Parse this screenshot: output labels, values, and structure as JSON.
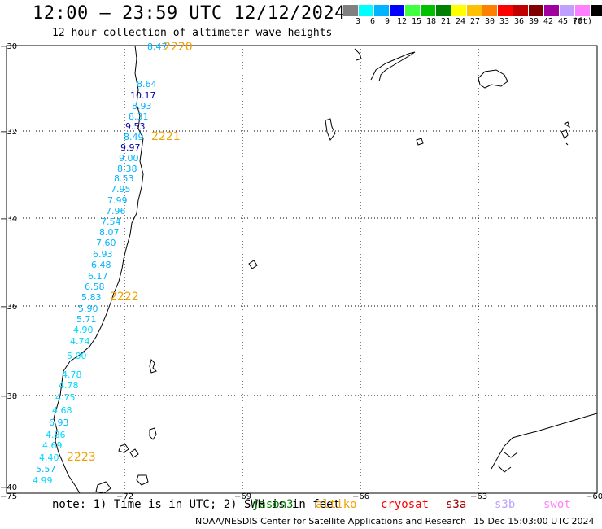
{
  "title": "12:00 – 23:59 UTC 12/12/2024",
  "subtitle": "12 hour collection of altimeter wave heights",
  "legend": {
    "colors": [
      "#808080",
      "#00ffff",
      "#00b4ff",
      "#0000ff",
      "#40ff40",
      "#00c000",
      "#008000",
      "#ffff00",
      "#ffc000",
      "#ff8000",
      "#ff0000",
      "#c00000",
      "#800000",
      "#a000a0",
      "#c0a0ff",
      "#ff80ff",
      "#000000"
    ],
    "ticks": [
      "3",
      "6",
      "9",
      "12",
      "15",
      "18",
      "21",
      "24",
      "27",
      "30",
      "33",
      "36",
      "39",
      "42",
      "45",
      "70",
      "(ft)"
    ]
  },
  "map": {
    "lon_ticks": [
      "−75",
      "−72",
      "−69",
      "−66",
      "−63",
      "−60"
    ],
    "lat_ticks": [
      "−30",
      "−32",
      "−34",
      "−36",
      "−38",
      "−40"
    ],
    "time_labels": [
      "2220",
      "2221",
      "2222",
      "2223"
    ],
    "time_color": "#f0a000",
    "wave_heights": [
      {
        "v": "8.47",
        "c": "#00b4ff"
      },
      {
        "v": "8.64",
        "c": "#00b4ff"
      },
      {
        "v": "10.17",
        "c": "#0000a0"
      },
      {
        "v": "8.93",
        "c": "#00b4ff"
      },
      {
        "v": "8.31",
        "c": "#00b4ff"
      },
      {
        "v": "9.53",
        "c": "#0000a0"
      },
      {
        "v": "8.49",
        "c": "#00b4ff"
      },
      {
        "v": "9.97",
        "c": "#0000a0"
      },
      {
        "v": "9.00",
        "c": "#00b4ff"
      },
      {
        "v": "8.38",
        "c": "#00b4ff"
      },
      {
        "v": "8.53",
        "c": "#00b4ff"
      },
      {
        "v": "7.95",
        "c": "#00b4ff"
      },
      {
        "v": "7.99",
        "c": "#00b4ff"
      },
      {
        "v": "7.96",
        "c": "#00b4ff"
      },
      {
        "v": "7.54",
        "c": "#00b4ff"
      },
      {
        "v": "8.07",
        "c": "#00b4ff"
      },
      {
        "v": "7.60",
        "c": "#00b4ff"
      },
      {
        "v": "6.93",
        "c": "#00b4ff"
      },
      {
        "v": "6.48",
        "c": "#00b4ff"
      },
      {
        "v": "6.17",
        "c": "#00b4ff"
      },
      {
        "v": "6.58",
        "c": "#00b4ff"
      },
      {
        "v": "5.83",
        "c": "#00b4ff"
      },
      {
        "v": "5.90",
        "c": "#00b4ff"
      },
      {
        "v": "5.71",
        "c": "#00b4ff"
      },
      {
        "v": "4.90",
        "c": "#00d8ff"
      },
      {
        "v": "4.74",
        "c": "#00d8ff"
      },
      {
        "v": "5.00",
        "c": "#00d8ff"
      },
      {
        "v": "4.78",
        "c": "#00d8ff"
      },
      {
        "v": "4.78",
        "c": "#00d8ff"
      },
      {
        "v": "4.75",
        "c": "#00d8ff"
      },
      {
        "v": "4.68",
        "c": "#00d8ff"
      },
      {
        "v": "6.93",
        "c": "#00b4ff"
      },
      {
        "v": "4.86",
        "c": "#00d8ff"
      },
      {
        "v": "4.69",
        "c": "#00d8ff"
      },
      {
        "v": "4.40",
        "c": "#00d8ff"
      },
      {
        "v": "5.57",
        "c": "#00b4ff"
      },
      {
        "v": "4.99",
        "c": "#00d8ff"
      }
    ]
  },
  "note": "note:  1) Time is in UTC; 2) SWH is in feet",
  "satellites": [
    {
      "name": "jason3",
      "color": "#008000"
    },
    {
      "name": "altiko",
      "color": "#f0a000"
    },
    {
      "name": "cryosat",
      "color": "#ff0000"
    },
    {
      "name": "s3a",
      "color": "#a00000"
    },
    {
      "name": "s3b",
      "color": "#c0a0ff"
    },
    {
      "name": "swot",
      "color": "#ff80ff"
    }
  ],
  "credit": "NOAA/NESDIS Center for Satellite Applications and Research",
  "generated": "15 Dec 15:03:00 UTC 2024"
}
